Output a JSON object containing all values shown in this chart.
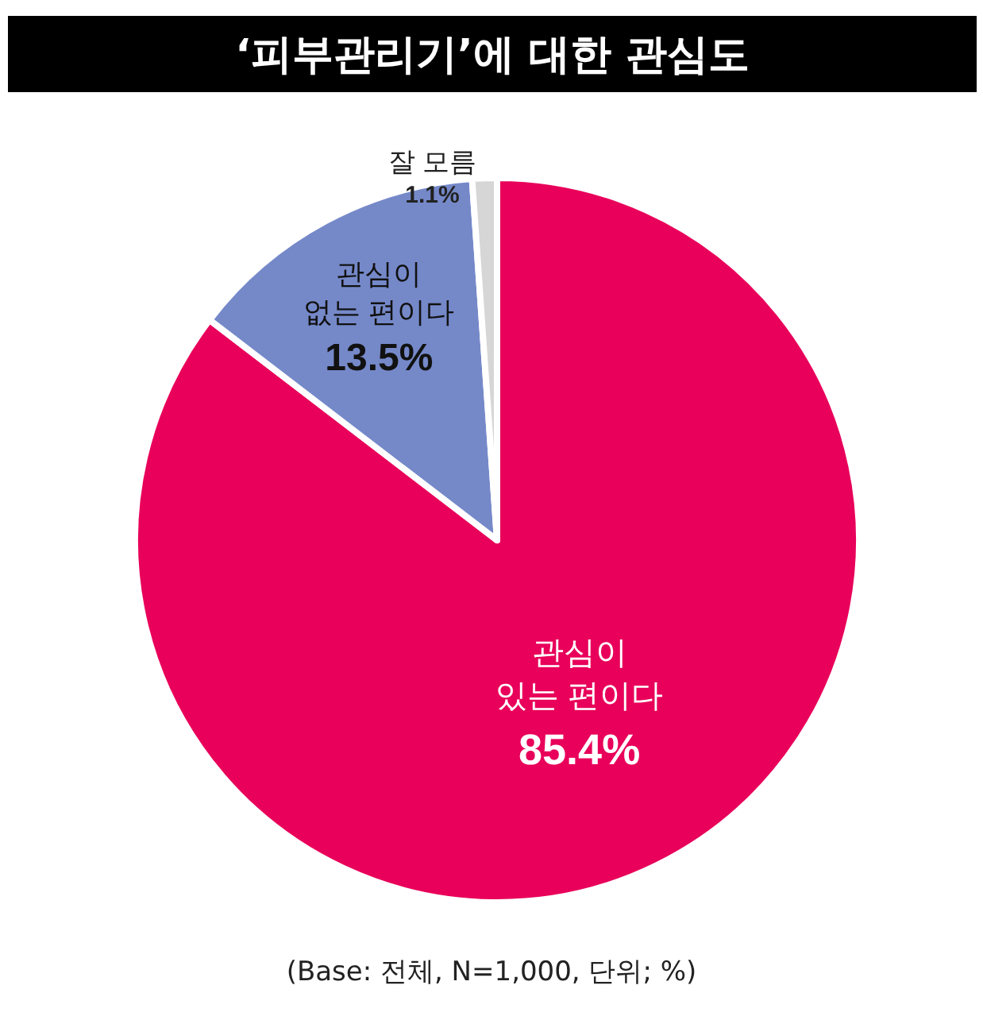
{
  "chart_data": {
    "type": "pie",
    "title": "‘피부관리기’에 대한 관심도",
    "categories": [
      "관심이\n있는 편이다",
      "관심이\n없는 편이다",
      "잘 모름"
    ],
    "values": [
      85.4,
      13.5,
      1.1
    ],
    "value_labels": [
      "85.4%",
      "13.5%",
      "1.1%"
    ],
    "colors": [
      "#e8005a",
      "#7589c9",
      "#d6d6d6"
    ],
    "legend": false,
    "annotations": [
      "(Base: 전체, N=1,000, 단위; %)"
    ]
  }
}
